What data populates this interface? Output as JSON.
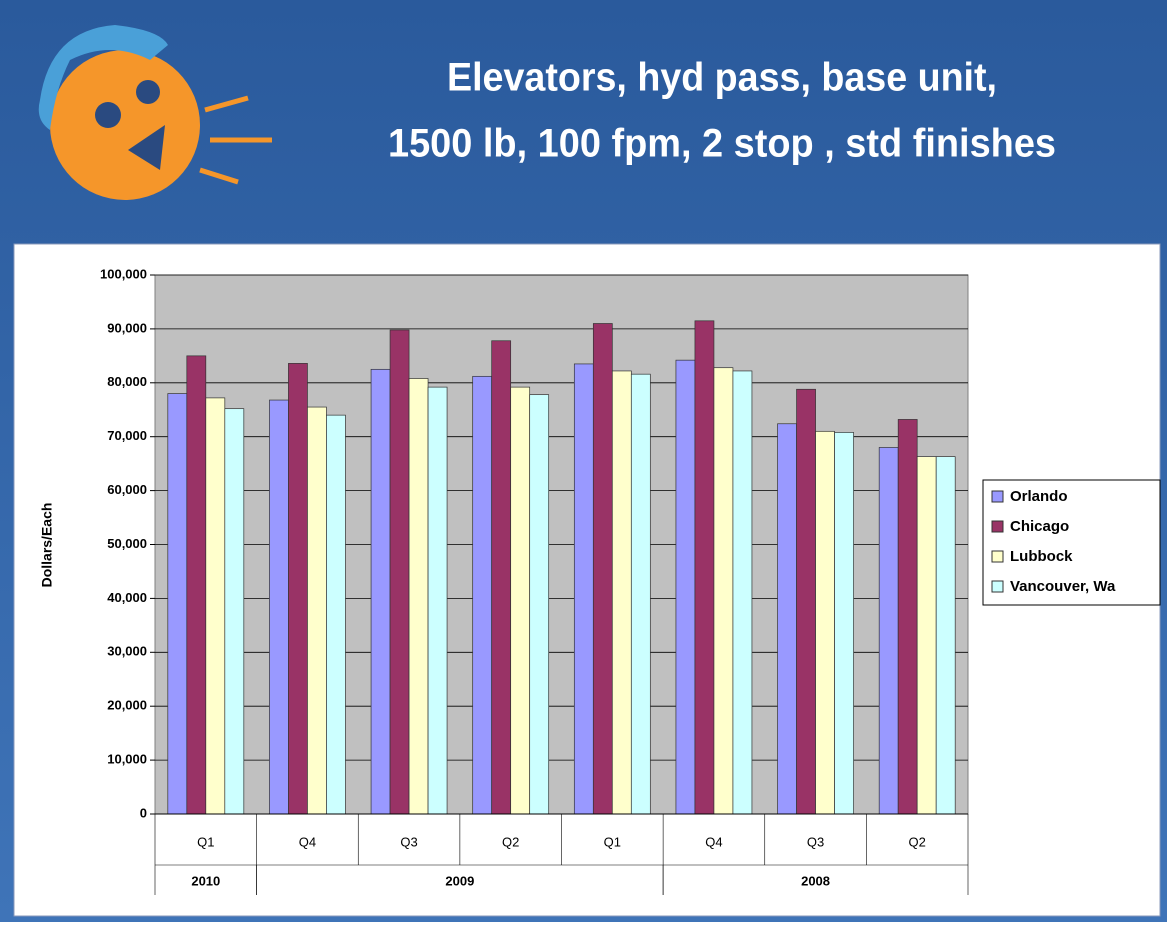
{
  "chart_data": {
    "type": "bar",
    "title": [
      "Elevators, hyd pass, base unit,",
      "1500 lb, 100 fpm, 2 stop , std finishes"
    ],
    "y_label": "Dollars/Each",
    "groups": [
      {
        "name": "2010",
        "categories": [
          "Q1"
        ]
      },
      {
        "name": "2009",
        "categories": [
          "Q4",
          "Q3",
          "Q2",
          "Q1"
        ]
      },
      {
        "name": "2008",
        "categories": [
          "Q4",
          "Q3",
          "Q2"
        ]
      }
    ],
    "series": [
      {
        "name": "Orlando",
        "color": "#9999ff",
        "values": [
          78000,
          76800,
          82500,
          81200,
          83500,
          84200,
          72400,
          68000
        ]
      },
      {
        "name": "Chicago",
        "color": "#993366",
        "values": [
          85000,
          83600,
          89800,
          87800,
          91000,
          91500,
          78800,
          73200
        ]
      },
      {
        "name": "Lubbock",
        "color": "#ffffcc",
        "values": [
          77200,
          75500,
          80800,
          79200,
          82200,
          82800,
          71000,
          66300
        ]
      },
      {
        "name": "Vancouver, Wa",
        "color": "#ccffff",
        "values": [
          75200,
          74000,
          79200,
          77800,
          81600,
          82200,
          70800,
          66300
        ]
      }
    ],
    "ylim": [
      0,
      100000
    ],
    "yticks": [
      0,
      {
        "value": 10000,
        "label": "10,000"
      },
      {
        "value": 20000,
        "label": "20,000"
      },
      {
        "value": 30000,
        "label": "30,000"
      },
      {
        "value": 40000,
        "label": "40,000"
      },
      {
        "value": 50000,
        "label": "50,000"
      },
      {
        "value": 60000,
        "label": "60,000"
      },
      {
        "value": 70000,
        "label": "70,000"
      },
      {
        "value": 80000,
        "label": "80,000"
      },
      {
        "value": 90000,
        "label": "90,000"
      },
      {
        "value": 100000,
        "label": "100,000"
      }
    ],
    "grid": true,
    "legend": "right"
  }
}
